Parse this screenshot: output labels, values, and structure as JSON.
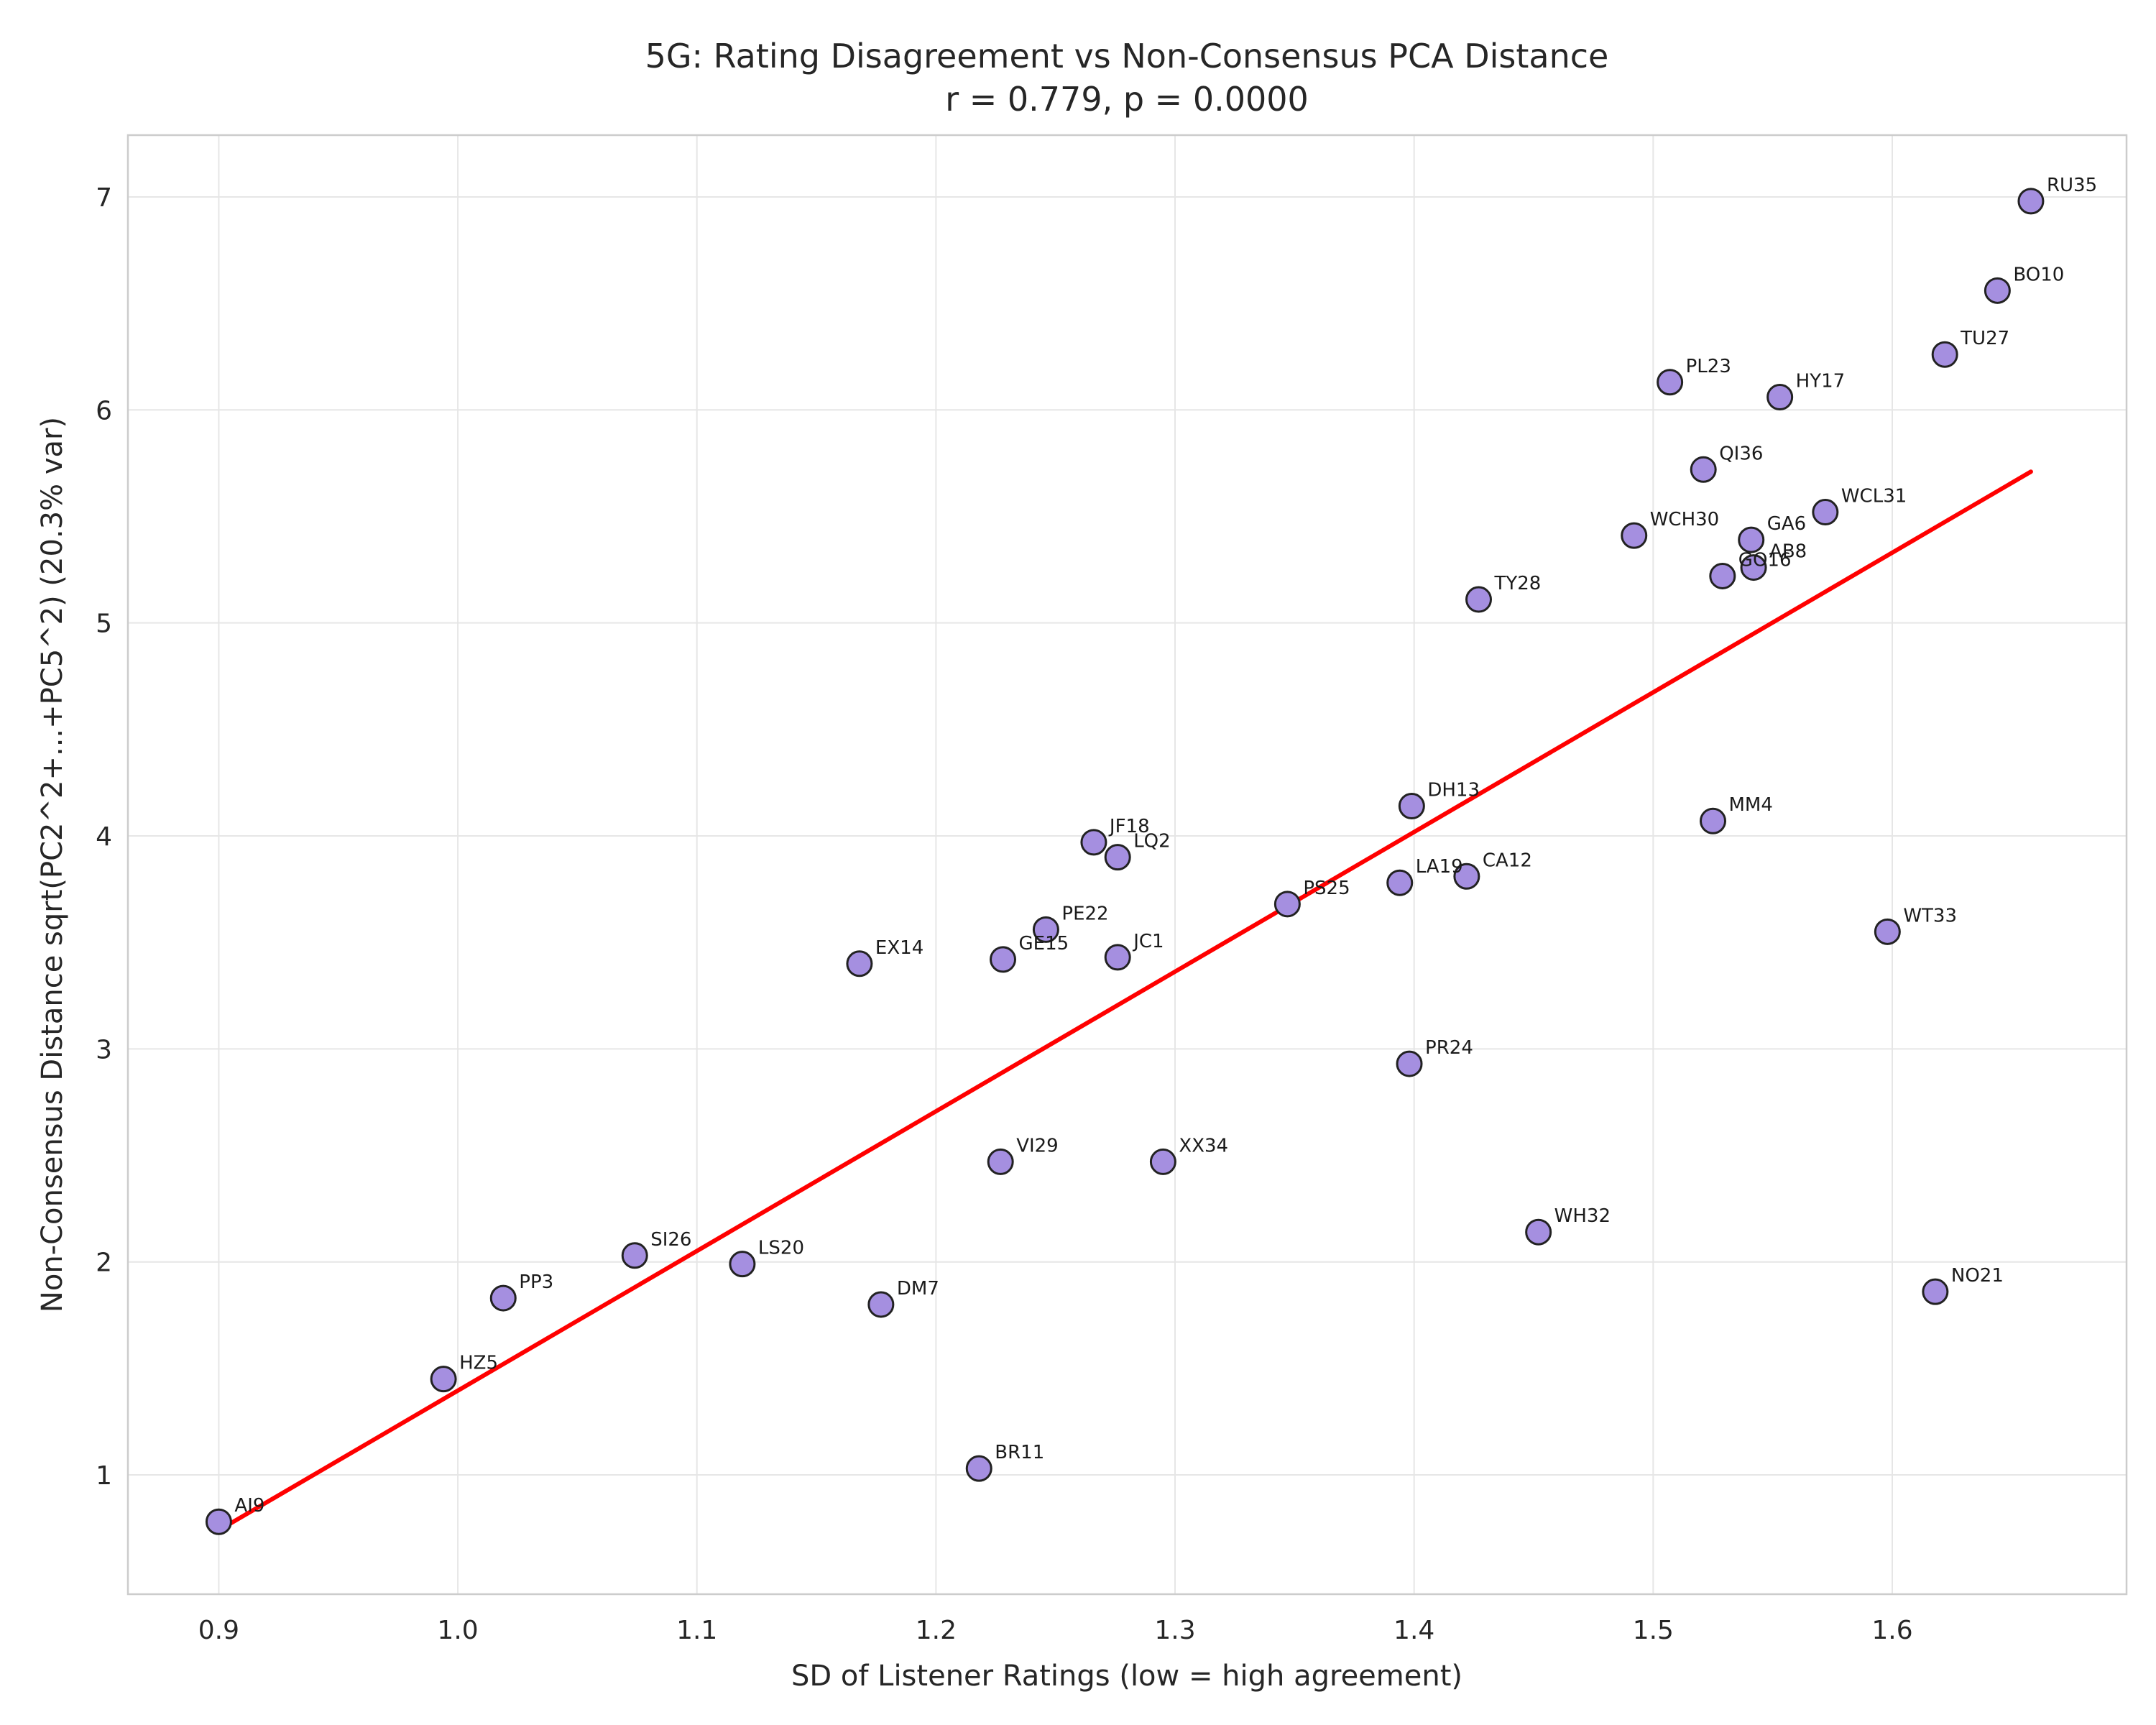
{
  "chart_data": {
    "type": "scatter",
    "title": "5G: Rating Disagreement vs Non-Consensus PCA Distance",
    "subtitle": "r = 0.779, p = 0.0000",
    "xlabel": "SD of Listener Ratings (low = high agreement)",
    "ylabel": "Non-Consensus Distance sqrt(PC2^2+...+PC5^2) (20.3% var)",
    "xlim": [
      0.862,
      1.698
    ],
    "ylim": [
      0.44,
      7.29
    ],
    "xticks": [
      "0.9",
      "1.0",
      "1.1",
      "1.2",
      "1.3",
      "1.4",
      "1.5",
      "1.6"
    ],
    "yticks": [
      "1",
      "2",
      "3",
      "4",
      "5",
      "6",
      "7"
    ],
    "grid": true,
    "point_color": "#a58fe0",
    "point_edge": "#222222",
    "fit_color": "#ff0000",
    "fit_line": {
      "x": [
        0.9,
        1.658
      ],
      "y": [
        0.74,
        5.71
      ]
    },
    "points": [
      {
        "label": "RU35",
        "x": 1.658,
        "y": 6.98
      },
      {
        "label": "BO10",
        "x": 1.644,
        "y": 6.56
      },
      {
        "label": "TU27",
        "x": 1.622,
        "y": 6.26
      },
      {
        "label": "PL23",
        "x": 1.507,
        "y": 6.13
      },
      {
        "label": "HY17",
        "x": 1.553,
        "y": 6.06
      },
      {
        "label": "QI36",
        "x": 1.521,
        "y": 5.72
      },
      {
        "label": "WCL31",
        "x": 1.572,
        "y": 5.52
      },
      {
        "label": "WCH30",
        "x": 1.492,
        "y": 5.41
      },
      {
        "label": "GA6",
        "x": 1.541,
        "y": 5.39
      },
      {
        "label": "AB8",
        "x": 1.542,
        "y": 5.26
      },
      {
        "label": "GO16",
        "x": 1.529,
        "y": 5.22
      },
      {
        "label": "TY28",
        "x": 1.427,
        "y": 5.11
      },
      {
        "label": "DH13",
        "x": 1.399,
        "y": 4.14
      },
      {
        "label": "MM4",
        "x": 1.525,
        "y": 4.07
      },
      {
        "label": "JF18",
        "x": 1.266,
        "y": 3.97
      },
      {
        "label": "LQ2",
        "x": 1.276,
        "y": 3.9
      },
      {
        "label": "CA12",
        "x": 1.422,
        "y": 3.81
      },
      {
        "label": "LA19",
        "x": 1.394,
        "y": 3.78
      },
      {
        "label": "PS25",
        "x": 1.347,
        "y": 3.68
      },
      {
        "label": "PE22",
        "x": 1.246,
        "y": 3.56
      },
      {
        "label": "WT33",
        "x": 1.598,
        "y": 3.55
      },
      {
        "label": "JC1",
        "x": 1.276,
        "y": 3.43
      },
      {
        "label": "GE15",
        "x": 1.228,
        "y": 3.42
      },
      {
        "label": "EX14",
        "x": 1.168,
        "y": 3.4
      },
      {
        "label": "PR24",
        "x": 1.398,
        "y": 2.93
      },
      {
        "label": "VI29",
        "x": 1.227,
        "y": 2.47
      },
      {
        "label": "XX34",
        "x": 1.295,
        "y": 2.47
      },
      {
        "label": "WH32",
        "x": 1.452,
        "y": 2.14
      },
      {
        "label": "SI26",
        "x": 1.074,
        "y": 2.03
      },
      {
        "label": "LS20",
        "x": 1.119,
        "y": 1.99
      },
      {
        "label": "NO21",
        "x": 1.618,
        "y": 1.86
      },
      {
        "label": "PP3",
        "x": 1.019,
        "y": 1.83
      },
      {
        "label": "DM7",
        "x": 1.177,
        "y": 1.8
      },
      {
        "label": "HZ5",
        "x": 0.994,
        "y": 1.45
      },
      {
        "label": "BR11",
        "x": 1.218,
        "y": 1.03
      },
      {
        "label": "AI9",
        "x": 0.9,
        "y": 0.78
      }
    ]
  }
}
